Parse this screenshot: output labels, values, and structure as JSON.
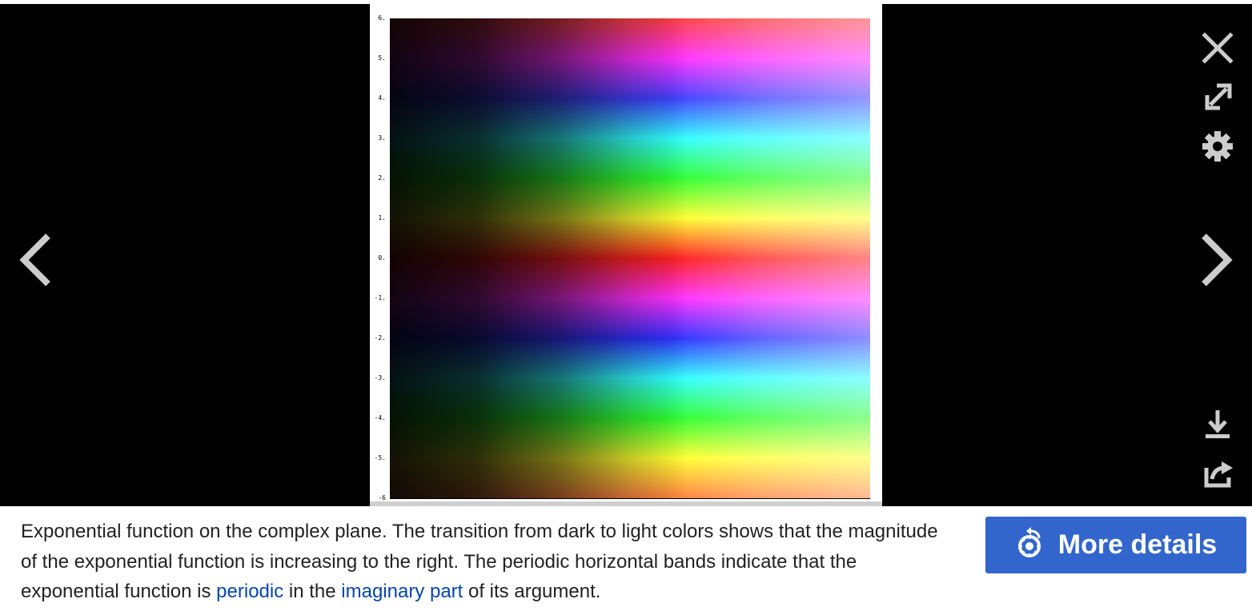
{
  "viewer": {
    "image": {
      "y_ticks": [
        "6.",
        "5.",
        "4.",
        "3.",
        "2.",
        "1.",
        "0.",
        "-1.",
        "-2.",
        "-3.",
        "-4.",
        "-5.",
        "-6"
      ]
    },
    "controls": {
      "close_icon": "close-icon",
      "fullscreen_icon": "expand-icon",
      "settings_icon": "gear-icon",
      "prev_icon": "chevron-left-icon",
      "next_icon": "chevron-right-icon",
      "download_icon": "download-icon",
      "share_icon": "share-icon"
    }
  },
  "caption": {
    "text_1": "Exponential function on the complex plane. The transition from dark to light colors shows that the magnitude of the exponential function is increasing to the right. The periodic horizontal bands indicate that the exponential function is ",
    "link_1": "periodic",
    "text_2": " in the ",
    "link_2": "imaginary part",
    "text_3": " of its argument."
  },
  "more_details_button": {
    "label": "More details",
    "icon": "commons-logo-icon"
  },
  "colors": {
    "viewer_bg": "#000000",
    "icon_color": "#cccccc",
    "button_bg": "#3366cc",
    "link_color": "#0645ad",
    "caption_text": "#222222"
  }
}
